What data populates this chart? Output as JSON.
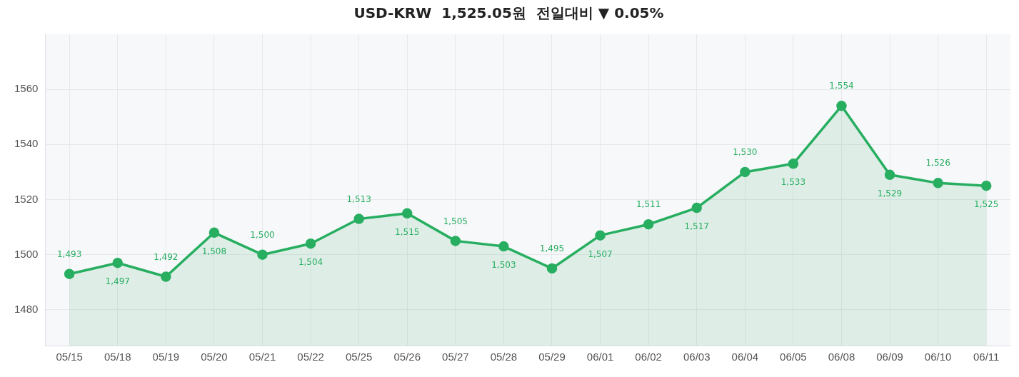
{
  "chart_data": {
    "type": "area",
    "title": "USD-KRW  1,525.05원  전일대비 ▼ 0.05%",
    "categories": [
      "05/15",
      "05/18",
      "05/19",
      "05/20",
      "05/21",
      "05/22",
      "05/25",
      "05/26",
      "05/27",
      "05/28",
      "05/29",
      "06/01",
      "06/02",
      "06/03",
      "06/04",
      "06/05",
      "06/08",
      "06/09",
      "06/10",
      "06/11"
    ],
    "series": [
      {
        "color": "#27ae60",
        "values": [
          1493,
          1497,
          1492,
          1508,
          1500,
          1504,
          1513,
          1515,
          1505,
          1503,
          1495,
          1507,
          1511,
          1517,
          1530,
          1533,
          1554,
          1529,
          1526,
          1525
        ],
        "value_labels": [
          "1,493",
          "1,497",
          "1,492",
          "1,508",
          "1,500",
          "1,504",
          "1,513",
          "1,515",
          "1,505",
          "1,503",
          "1,495",
          "1,507",
          "1,511",
          "1,517",
          "1,530",
          "1,533",
          "1,554",
          "1,529",
          "1,526",
          "1,525"
        ]
      }
    ],
    "ylim": [
      1467,
      1580
    ],
    "yticks": [
      1480,
      1500,
      1520,
      1540,
      1560
    ],
    "grid": true,
    "legend": false,
    "marker": "circle",
    "line_style": "solid"
  }
}
